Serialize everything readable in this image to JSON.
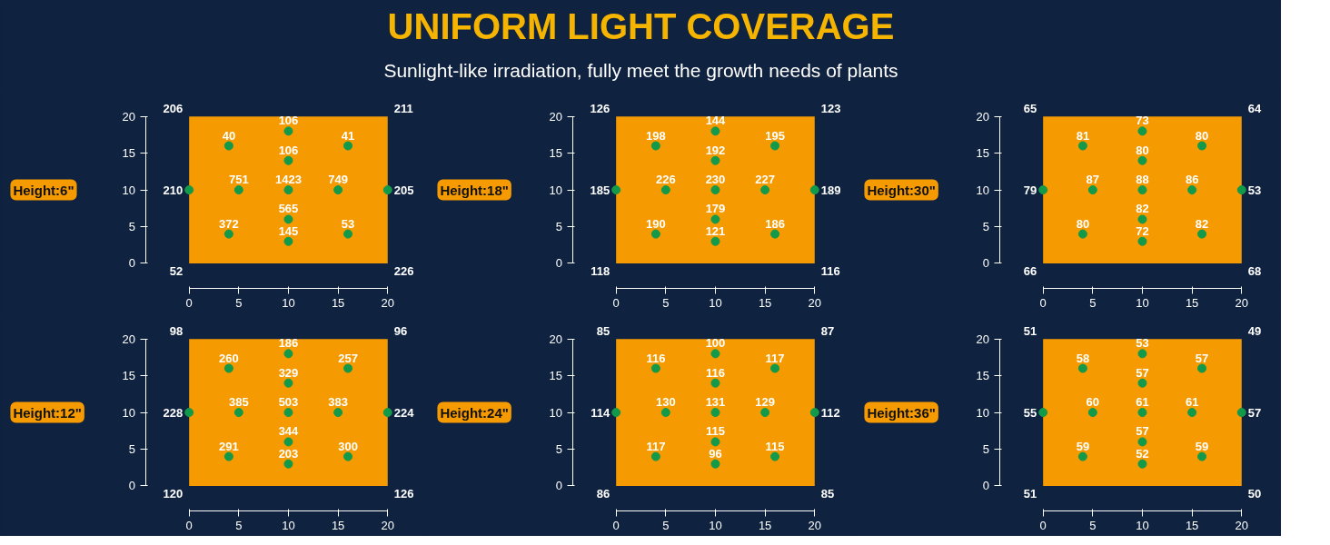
{
  "chart_data": [
    {
      "type": "other",
      "title": "UNIFORM LIGHT COVERAGE",
      "subtitle": "Sunlight-like irradiation, fully meet the growth needs of plants"
    },
    {
      "type": "scatter",
      "title": "Height:6\"",
      "xlim": [
        0,
        20
      ],
      "ylim": [
        0,
        20
      ],
      "xticks": [
        0,
        5,
        10,
        15,
        20
      ],
      "yticks": [
        0,
        5,
        10,
        15,
        20
      ],
      "marker": "circle",
      "series": [
        {
          "color": "#12994a",
          "x": [
            10,
            10,
            5,
            15,
            10,
            10,
            0,
            20,
            10,
            4,
            16,
            4,
            16
          ],
          "values": [
            10,
            14,
            10,
            10,
            6,
            18,
            10,
            10,
            3,
            16,
            16,
            4,
            4
          ]
        }
      ],
      "annotations": [
        {
          "text": "1423",
          "x": 10,
          "y": 10
        },
        {
          "text": "106",
          "x": 10,
          "y": 14
        },
        {
          "text": "751",
          "x": 5,
          "y": 10
        },
        {
          "text": "749",
          "x": 15,
          "y": 10
        },
        {
          "text": "565",
          "x": 10,
          "y": 6
        },
        {
          "text": "106",
          "x": 10,
          "y": 18
        },
        {
          "text": "210",
          "x": 0,
          "y": 10
        },
        {
          "text": "205",
          "x": 20,
          "y": 10
        },
        {
          "text": "145",
          "x": 10,
          "y": 3
        },
        {
          "text": "40",
          "x": 4,
          "y": 16
        },
        {
          "text": "41",
          "x": 16,
          "y": 16
        },
        {
          "text": "372",
          "x": 4,
          "y": 4
        },
        {
          "text": "53",
          "x": 16,
          "y": 4
        },
        "206",
        "211",
        "52",
        "226"
      ]
    },
    {
      "type": "scatter",
      "title": "Height:18\"",
      "xlim": [
        0,
        20
      ],
      "ylim": [
        0,
        20
      ],
      "xticks": [
        0,
        5,
        10,
        15,
        20
      ],
      "yticks": [
        0,
        5,
        10,
        15,
        20
      ],
      "marker": "circle",
      "series": [
        {
          "color": "#12994a",
          "x": [
            10,
            10,
            5,
            15,
            10,
            10,
            0,
            20,
            10,
            4,
            16,
            4,
            16
          ],
          "values": [
            10,
            14,
            10,
            10,
            6,
            18,
            10,
            10,
            3,
            16,
            16,
            4,
            4
          ]
        }
      ],
      "annotations": [
        {
          "text": "230",
          "x": 10,
          "y": 10
        },
        {
          "text": "192",
          "x": 10,
          "y": 14
        },
        {
          "text": "226",
          "x": 5,
          "y": 10
        },
        {
          "text": "227",
          "x": 15,
          "y": 10
        },
        {
          "text": "179",
          "x": 10,
          "y": 6
        },
        {
          "text": "144",
          "x": 10,
          "y": 18
        },
        {
          "text": "185",
          "x": 0,
          "y": 10
        },
        {
          "text": "189",
          "x": 20,
          "y": 10
        },
        {
          "text": "121",
          "x": 10,
          "y": 3
        },
        {
          "text": "198",
          "x": 4,
          "y": 16
        },
        {
          "text": "195",
          "x": 16,
          "y": 16
        },
        {
          "text": "190",
          "x": 4,
          "y": 4
        },
        {
          "text": "186",
          "x": 16,
          "y": 4
        },
        "126",
        "123",
        "118",
        "116"
      ]
    },
    {
      "type": "scatter",
      "title": "Height:30\"",
      "xlim": [
        0,
        20
      ],
      "ylim": [
        0,
        20
      ],
      "xticks": [
        0,
        5,
        10,
        15,
        20
      ],
      "yticks": [
        0,
        5,
        10,
        15,
        20
      ],
      "marker": "circle",
      "series": [
        {
          "color": "#12994a",
          "x": [
            10,
            10,
            5,
            15,
            10,
            10,
            0,
            20,
            10,
            4,
            16,
            4,
            16
          ],
          "values": [
            10,
            14,
            10,
            10,
            6,
            18,
            10,
            10,
            3,
            16,
            16,
            4,
            4
          ]
        }
      ],
      "annotations": [
        {
          "text": "88",
          "x": 10,
          "y": 10
        },
        {
          "text": "80",
          "x": 10,
          "y": 14
        },
        {
          "text": "87",
          "x": 5,
          "y": 10
        },
        {
          "text": "86",
          "x": 15,
          "y": 10
        },
        {
          "text": "82",
          "x": 10,
          "y": 6
        },
        {
          "text": "73",
          "x": 10,
          "y": 18
        },
        {
          "text": "79",
          "x": 0,
          "y": 10
        },
        {
          "text": "53",
          "x": 20,
          "y": 10
        },
        {
          "text": "72",
          "x": 10,
          "y": 3
        },
        {
          "text": "81",
          "x": 4,
          "y": 16
        },
        {
          "text": "80",
          "x": 16,
          "y": 16
        },
        {
          "text": "80",
          "x": 4,
          "y": 4
        },
        {
          "text": "82",
          "x": 16,
          "y": 4
        },
        "65",
        "64",
        "66",
        "68"
      ]
    },
    {
      "type": "scatter",
      "title": "Height:12\"",
      "xlim": [
        0,
        20
      ],
      "ylim": [
        0,
        20
      ],
      "xticks": [
        0,
        5,
        10,
        15,
        20
      ],
      "yticks": [
        0,
        5,
        10,
        15,
        20
      ],
      "marker": "circle",
      "series": [
        {
          "color": "#12994a",
          "x": [
            10,
            10,
            5,
            15,
            10,
            10,
            0,
            20,
            10,
            4,
            16,
            4,
            16
          ],
          "values": [
            10,
            14,
            10,
            10,
            6,
            18,
            10,
            10,
            3,
            16,
            16,
            4,
            4
          ]
        }
      ],
      "annotations": [
        {
          "text": "503",
          "x": 10,
          "y": 10
        },
        {
          "text": "329",
          "x": 10,
          "y": 14
        },
        {
          "text": "385",
          "x": 5,
          "y": 10
        },
        {
          "text": "383",
          "x": 15,
          "y": 10
        },
        {
          "text": "344",
          "x": 10,
          "y": 6
        },
        {
          "text": "186",
          "x": 10,
          "y": 18
        },
        {
          "text": "228",
          "x": 0,
          "y": 10
        },
        {
          "text": "224",
          "x": 20,
          "y": 10
        },
        {
          "text": "203",
          "x": 10,
          "y": 3
        },
        {
          "text": "260",
          "x": 4,
          "y": 16
        },
        {
          "text": "257",
          "x": 16,
          "y": 16
        },
        {
          "text": "291",
          "x": 4,
          "y": 4
        },
        {
          "text": "300",
          "x": 16,
          "y": 4
        },
        "98",
        "96",
        "120",
        "126"
      ]
    },
    {
      "type": "scatter",
      "title": "Height:24\"",
      "xlim": [
        0,
        20
      ],
      "ylim": [
        0,
        20
      ],
      "xticks": [
        0,
        5,
        10,
        15,
        20
      ],
      "yticks": [
        0,
        5,
        10,
        15,
        20
      ],
      "marker": "circle",
      "series": [
        {
          "color": "#12994a",
          "x": [
            10,
            10,
            5,
            15,
            10,
            10,
            0,
            20,
            10,
            4,
            16,
            4,
            16
          ],
          "values": [
            10,
            14,
            10,
            10,
            6,
            18,
            10,
            10,
            3,
            16,
            16,
            4,
            4
          ]
        }
      ],
      "annotations": [
        {
          "text": "131",
          "x": 10,
          "y": 10
        },
        {
          "text": "116",
          "x": 10,
          "y": 14
        },
        {
          "text": "130",
          "x": 5,
          "y": 10
        },
        {
          "text": "129",
          "x": 15,
          "y": 10
        },
        {
          "text": "115",
          "x": 10,
          "y": 6
        },
        {
          "text": "100",
          "x": 10,
          "y": 18
        },
        {
          "text": "114",
          "x": 0,
          "y": 10
        },
        {
          "text": "112",
          "x": 20,
          "y": 10
        },
        {
          "text": "96",
          "x": 10,
          "y": 3
        },
        {
          "text": "116",
          "x": 4,
          "y": 16
        },
        {
          "text": "117",
          "x": 16,
          "y": 16
        },
        {
          "text": "117",
          "x": 4,
          "y": 4
        },
        {
          "text": "115",
          "x": 16,
          "y": 4
        },
        "85",
        "87",
        "86",
        "85"
      ]
    },
    {
      "type": "scatter",
      "title": "Height:36\"",
      "xlim": [
        0,
        20
      ],
      "ylim": [
        0,
        20
      ],
      "xticks": [
        0,
        5,
        10,
        15,
        20
      ],
      "yticks": [
        0,
        5,
        10,
        15,
        20
      ],
      "marker": "circle",
      "series": [
        {
          "color": "#12994a",
          "x": [
            10,
            10,
            5,
            15,
            10,
            10,
            0,
            20,
            10,
            4,
            16,
            4,
            16
          ],
          "values": [
            10,
            14,
            10,
            10,
            6,
            18,
            10,
            10,
            3,
            16,
            16,
            4,
            4
          ]
        }
      ],
      "annotations": [
        {
          "text": "61",
          "x": 10,
          "y": 10
        },
        {
          "text": "57",
          "x": 10,
          "y": 14
        },
        {
          "text": "60",
          "x": 5,
          "y": 10
        },
        {
          "text": "61",
          "x": 15,
          "y": 10
        },
        {
          "text": "57",
          "x": 10,
          "y": 6
        },
        {
          "text": "53",
          "x": 10,
          "y": 18
        },
        {
          "text": "55",
          "x": 0,
          "y": 10
        },
        {
          "text": "57",
          "x": 20,
          "y": 10
        },
        {
          "text": "52",
          "x": 10,
          "y": 3
        },
        {
          "text": "58",
          "x": 4,
          "y": 16
        },
        {
          "text": "57",
          "x": 16,
          "y": 16
        },
        {
          "text": "59",
          "x": 4,
          "y": 4
        },
        {
          "text": "59",
          "x": 16,
          "y": 4
        },
        "51",
        "49",
        "51",
        "50"
      ]
    }
  ]
}
